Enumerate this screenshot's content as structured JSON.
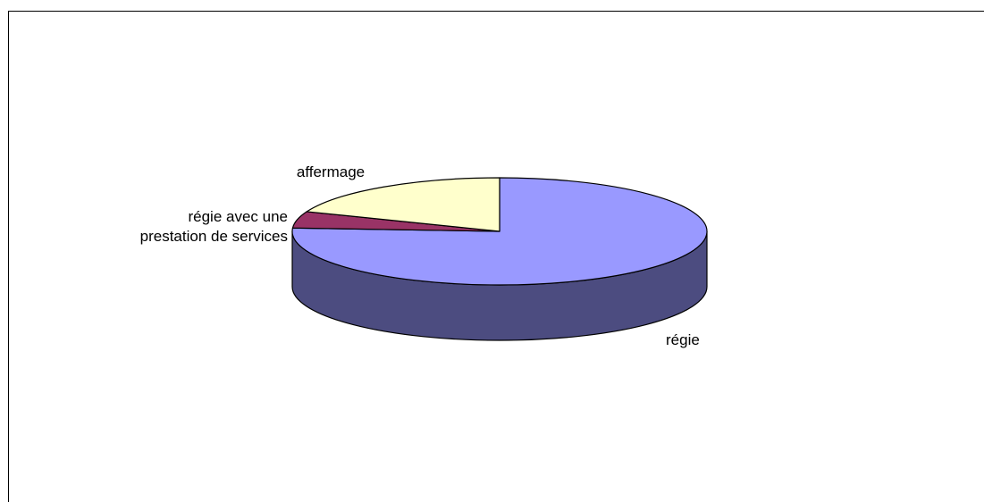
{
  "chart_data": {
    "type": "pie",
    "style": "3d",
    "title": "",
    "start_angle_deg": 90,
    "direction": "clockwise",
    "legend": "none",
    "slices": [
      {
        "label": "régie",
        "label_lines": [
          "régie"
        ],
        "value": 76,
        "top_color": "#9999ff",
        "side_color": "#4c4c80"
      },
      {
        "label": "régie avec une prestation de services",
        "label_lines": [
          "régie avec une",
          "prestation de services"
        ],
        "value": 5,
        "top_color": "#993366",
        "side_color": "#4c1a33"
      },
      {
        "label": "affermage",
        "label_lines": [
          "affermage"
        ],
        "value": 19,
        "top_color": "#ffffcc",
        "side_color": "#808066"
      }
    ]
  }
}
